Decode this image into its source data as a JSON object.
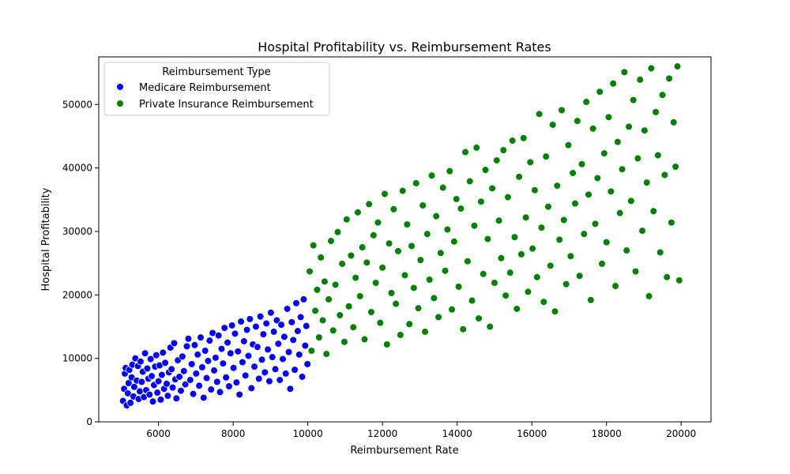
{
  "chart_data": {
    "type": "scatter",
    "title": "Hospital Profitability vs. Reimbursement Rates",
    "xlabel": "Reimbursement Rate",
    "ylabel": "Hospital Profitability",
    "xlim": [
      4400,
      20800
    ],
    "ylim": [
      0,
      57500
    ],
    "x_ticks": [
      6000,
      8000,
      10000,
      12000,
      14000,
      16000,
      18000,
      20000
    ],
    "y_ticks": [
      0,
      10000,
      20000,
      30000,
      40000,
      50000
    ],
    "grid": false,
    "legend": {
      "title": "Reimbursement Type",
      "placement": "top-left"
    },
    "series": [
      {
        "name": "Medicare Reimbursement",
        "color": "#0000ff",
        "points": [
          [
            5050,
            3300
          ],
          [
            5080,
            5200
          ],
          [
            5100,
            7600
          ],
          [
            5120,
            8500
          ],
          [
            5150,
            2600
          ],
          [
            5180,
            4500
          ],
          [
            5200,
            6100
          ],
          [
            5220,
            8200
          ],
          [
            5250,
            3000
          ],
          [
            5280,
            7000
          ],
          [
            5300,
            9000
          ],
          [
            5330,
            4000
          ],
          [
            5350,
            5500
          ],
          [
            5380,
            10000
          ],
          [
            5420,
            6500
          ],
          [
            5450,
            8800
          ],
          [
            5470,
            3600
          ],
          [
            5500,
            4800
          ],
          [
            5520,
            9500
          ],
          [
            5550,
            6300
          ],
          [
            5580,
            7900
          ],
          [
            5610,
            3900
          ],
          [
            5640,
            10800
          ],
          [
            5670,
            5000
          ],
          [
            5700,
            8400
          ],
          [
            5730,
            6800
          ],
          [
            5760,
            4300
          ],
          [
            5790,
            9900
          ],
          [
            5820,
            7200
          ],
          [
            5850,
            3200
          ],
          [
            5880,
            5800
          ],
          [
            5910,
            8700
          ],
          [
            5940,
            10500
          ],
          [
            5970,
            4600
          ],
          [
            6000,
            6400
          ],
          [
            6030,
            8900
          ],
          [
            6060,
            3500
          ],
          [
            6090,
            7400
          ],
          [
            6120,
            10900
          ],
          [
            6150,
            5200
          ],
          [
            6180,
            9300
          ],
          [
            6220,
            6000
          ],
          [
            6250,
            4100
          ],
          [
            6280,
            7800
          ],
          [
            6320,
            11700
          ],
          [
            6350,
            8300
          ],
          [
            6380,
            5400
          ],
          [
            6420,
            12400
          ],
          [
            6450,
            6700
          ],
          [
            6480,
            3700
          ],
          [
            6520,
            9700
          ],
          [
            6560,
            7100
          ],
          [
            6600,
            4900
          ],
          [
            6640,
            10300
          ],
          [
            6680,
            8000
          ],
          [
            6720,
            5900
          ],
          [
            6760,
            11900
          ],
          [
            6800,
            13100
          ],
          [
            6850,
            6600
          ],
          [
            6890,
            9100
          ],
          [
            6930,
            4400
          ],
          [
            6970,
            12100
          ],
          [
            7010,
            7600
          ],
          [
            7050,
            10600
          ],
          [
            7090,
            5700
          ],
          [
            7130,
            13300
          ],
          [
            7170,
            8600
          ],
          [
            7210,
            3800
          ],
          [
            7250,
            11200
          ],
          [
            7290,
            6900
          ],
          [
            7330,
            9600
          ],
          [
            7370,
            12800
          ],
          [
            7410,
            5100
          ],
          [
            7450,
            14000
          ],
          [
            7490,
            8100
          ],
          [
            7530,
            10100
          ],
          [
            7570,
            6300
          ],
          [
            7610,
            13600
          ],
          [
            7650,
            4700
          ],
          [
            7690,
            11500
          ],
          [
            7730,
            9200
          ],
          [
            7770,
            14800
          ],
          [
            7810,
            7000
          ],
          [
            7850,
            12500
          ],
          [
            7890,
            5600
          ],
          [
            7930,
            10800
          ],
          [
            7970,
            15200
          ],
          [
            8010,
            8500
          ],
          [
            8050,
            13900
          ],
          [
            8090,
            6200
          ],
          [
            8130,
            11100
          ],
          [
            8170,
            4300
          ],
          [
            8210,
            15800
          ],
          [
            8250,
            9400
          ],
          [
            8290,
            12700
          ],
          [
            8330,
            7300
          ],
          [
            8370,
            14500
          ],
          [
            8410,
            10400
          ],
          [
            8450,
            16200
          ],
          [
            8490,
            5300
          ],
          [
            8530,
            12200
          ],
          [
            8570,
            8700
          ],
          [
            8610,
            15000
          ],
          [
            8650,
            11800
          ],
          [
            8690,
            6800
          ],
          [
            8730,
            16600
          ],
          [
            8770,
            9800
          ],
          [
            8810,
            13800
          ],
          [
            8850,
            7800
          ],
          [
            8890,
            15500
          ],
          [
            8930,
            11400
          ],
          [
            8970,
            6400
          ],
          [
            9010,
            17200
          ],
          [
            9050,
            10200
          ],
          [
            9090,
            14200
          ],
          [
            9130,
            8300
          ],
          [
            9170,
            16000
          ],
          [
            9210,
            12300
          ],
          [
            9250,
            6600
          ],
          [
            9290,
            15300
          ],
          [
            9330,
            9900
          ],
          [
            9370,
            13400
          ],
          [
            9410,
            7600
          ],
          [
            9450,
            17800
          ],
          [
            9490,
            11000
          ],
          [
            9530,
            5200
          ],
          [
            9570,
            15700
          ],
          [
            9610,
            12900
          ],
          [
            9650,
            8200
          ],
          [
            9690,
            18700
          ],
          [
            9730,
            14300
          ],
          [
            9770,
            10600
          ],
          [
            9810,
            16500
          ],
          [
            9850,
            7100
          ],
          [
            9890,
            19300
          ],
          [
            9930,
            12000
          ],
          [
            9960,
            15100
          ],
          [
            9990,
            9100
          ]
        ]
      },
      {
        "name": "Private Insurance Reimbursement",
        "color": "#008000",
        "points": [
          [
            10050,
            23700
          ],
          [
            10100,
            11200
          ],
          [
            10150,
            27800
          ],
          [
            10200,
            17500
          ],
          [
            10250,
            20800
          ],
          [
            10300,
            13300
          ],
          [
            10350,
            25900
          ],
          [
            10400,
            16000
          ],
          [
            10450,
            22100
          ],
          [
            10500,
            10700
          ],
          [
            10560,
            19300
          ],
          [
            10620,
            28500
          ],
          [
            10680,
            14400
          ],
          [
            10740,
            21600
          ],
          [
            10800,
            29900
          ],
          [
            10860,
            16800
          ],
          [
            10920,
            24900
          ],
          [
            10980,
            12600
          ],
          [
            11040,
            31900
          ],
          [
            11100,
            18200
          ],
          [
            11160,
            26200
          ],
          [
            11220,
            14900
          ],
          [
            11280,
            22700
          ],
          [
            11340,
            33000
          ],
          [
            11400,
            19800
          ],
          [
            11460,
            27500
          ],
          [
            11520,
            13000
          ],
          [
            11580,
            25100
          ],
          [
            11640,
            34300
          ],
          [
            11700,
            17300
          ],
          [
            11760,
            29400
          ],
          [
            11820,
            21900
          ],
          [
            11880,
            31400
          ],
          [
            11940,
            15600
          ],
          [
            12000,
            24300
          ],
          [
            12060,
            35900
          ],
          [
            12120,
            12200
          ],
          [
            12180,
            28100
          ],
          [
            12240,
            20300
          ],
          [
            12300,
            33500
          ],
          [
            12360,
            18600
          ],
          [
            12420,
            26900
          ],
          [
            12480,
            13700
          ],
          [
            12540,
            36400
          ],
          [
            12600,
            23100
          ],
          [
            12660,
            31100
          ],
          [
            12720,
            15400
          ],
          [
            12780,
            27700
          ],
          [
            12840,
            21100
          ],
          [
            12900,
            37600
          ],
          [
            12960,
            17900
          ],
          [
            13020,
            25500
          ],
          [
            13080,
            34100
          ],
          [
            13140,
            14200
          ],
          [
            13200,
            29600
          ],
          [
            13260,
            22400
          ],
          [
            13320,
            38800
          ],
          [
            13380,
            19500
          ],
          [
            13440,
            32400
          ],
          [
            13500,
            16500
          ],
          [
            13560,
            26600
          ],
          [
            13620,
            36900
          ],
          [
            13680,
            23800
          ],
          [
            13740,
            30300
          ],
          [
            13800,
            39500
          ],
          [
            13860,
            17700
          ],
          [
            13920,
            28400
          ],
          [
            13980,
            35100
          ],
          [
            14040,
            21300
          ],
          [
            14100,
            33600
          ],
          [
            14160,
            14600
          ],
          [
            14220,
            42500
          ],
          [
            14280,
            25300
          ],
          [
            14340,
            37900
          ],
          [
            14400,
            19100
          ],
          [
            14460,
            30900
          ],
          [
            14520,
            43200
          ],
          [
            14580,
            16300
          ],
          [
            14640,
            34700
          ],
          [
            14700,
            23300
          ],
          [
            14760,
            39700
          ],
          [
            14820,
            28800
          ],
          [
            14880,
            15000
          ],
          [
            14940,
            36800
          ],
          [
            15000,
            21900
          ],
          [
            15060,
            41200
          ],
          [
            15120,
            31700
          ],
          [
            15180,
            25800
          ],
          [
            15240,
            42800
          ],
          [
            15300,
            19900
          ],
          [
            15360,
            35400
          ],
          [
            15420,
            23500
          ],
          [
            15480,
            44300
          ],
          [
            15540,
            29100
          ],
          [
            15600,
            17800
          ],
          [
            15660,
            38600
          ],
          [
            15720,
            26400
          ],
          [
            15780,
            44700
          ],
          [
            15840,
            32200
          ],
          [
            15900,
            20500
          ],
          [
            15960,
            40900
          ],
          [
            16020,
            27300
          ],
          [
            16080,
            36500
          ],
          [
            16140,
            22800
          ],
          [
            16200,
            48500
          ],
          [
            16260,
            30600
          ],
          [
            16320,
            18900
          ],
          [
            16380,
            41800
          ],
          [
            16440,
            33900
          ],
          [
            16500,
            24600
          ],
          [
            16560,
            46800
          ],
          [
            16620,
            17400
          ],
          [
            16680,
            37200
          ],
          [
            16740,
            28700
          ],
          [
            16800,
            49100
          ],
          [
            16860,
            31800
          ],
          [
            16920,
            21700
          ],
          [
            16980,
            43600
          ],
          [
            17040,
            26100
          ],
          [
            17100,
            39200
          ],
          [
            17160,
            34400
          ],
          [
            17220,
            47400
          ],
          [
            17280,
            23000
          ],
          [
            17340,
            40600
          ],
          [
            17400,
            29600
          ],
          [
            17460,
            50400
          ],
          [
            17520,
            35800
          ],
          [
            17580,
            19200
          ],
          [
            17640,
            46200
          ],
          [
            17700,
            31200
          ],
          [
            17760,
            38400
          ],
          [
            17820,
            52000
          ],
          [
            17880,
            24900
          ],
          [
            17940,
            42300
          ],
          [
            18000,
            28300
          ],
          [
            18060,
            48000
          ],
          [
            18120,
            36300
          ],
          [
            18180,
            53300
          ],
          [
            18240,
            21400
          ],
          [
            18300,
            44100
          ],
          [
            18360,
            32900
          ],
          [
            18420,
            39800
          ],
          [
            18480,
            55100
          ],
          [
            18540,
            27000
          ],
          [
            18600,
            46500
          ],
          [
            18660,
            34800
          ],
          [
            18720,
            50700
          ],
          [
            18780,
            23700
          ],
          [
            18840,
            41500
          ],
          [
            18900,
            53900
          ],
          [
            18960,
            30100
          ],
          [
            19020,
            45900
          ],
          [
            19080,
            37700
          ],
          [
            19140,
            19800
          ],
          [
            19200,
            55700
          ],
          [
            19260,
            33200
          ],
          [
            19320,
            48800
          ],
          [
            19380,
            42000
          ],
          [
            19440,
            26700
          ],
          [
            19500,
            51500
          ],
          [
            19560,
            38900
          ],
          [
            19620,
            22800
          ],
          [
            19680,
            54100
          ],
          [
            19740,
            31400
          ],
          [
            19800,
            47200
          ],
          [
            19850,
            40200
          ],
          [
            19900,
            56000
          ],
          [
            19950,
            22300
          ]
        ]
      }
    ]
  }
}
